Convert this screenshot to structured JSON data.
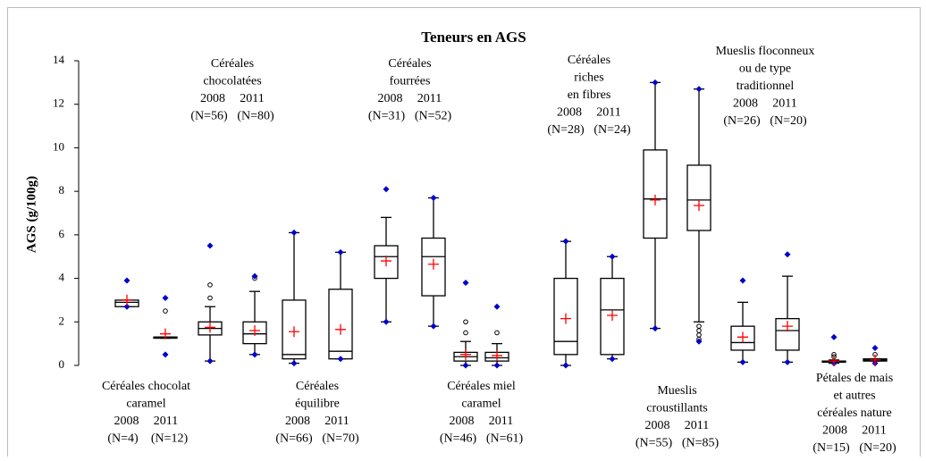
{
  "chart_data": {
    "type": "box",
    "title": "Teneurs en AGS",
    "y_label": "AGS (g/100g)",
    "ylim": [
      0,
      14
    ],
    "yticks": [
      0,
      2,
      4,
      6,
      8,
      10,
      12,
      14
    ],
    "box_color": "#000000",
    "mean_color": "#ff0000",
    "extreme_color": "#0000cc",
    "groups": [
      {
        "label_lines": [
          "Céréales chocolat",
          "caramel"
        ],
        "years": [
          "2008",
          "2011"
        ],
        "n": [
          "(N=4)",
          "(N=12)"
        ],
        "label_position": "below",
        "boxes": [
          {
            "low": 2.7,
            "q1": 2.7,
            "median": 2.9,
            "q3": 3.0,
            "high": 3.0,
            "mean": 3.0,
            "min": 2.7,
            "max": 3.9,
            "outliers": []
          },
          {
            "low": 1.25,
            "q1": 1.25,
            "median": 1.3,
            "q3": 1.3,
            "high": 1.3,
            "mean": 1.45,
            "min": 0.5,
            "max": 3.1,
            "outliers": [
              2.5
            ]
          }
        ]
      },
      {
        "label_lines": [
          "Céréales",
          "chocolatées"
        ],
        "years": [
          "2008",
          "2011"
        ],
        "n": [
          "(N=56)",
          "(N=80)"
        ],
        "label_position": "above",
        "boxes": [
          {
            "low": 0.2,
            "q1": 1.4,
            "median": 1.7,
            "q3": 2.0,
            "high": 2.7,
            "mean": 1.75,
            "min": 0.2,
            "max": 5.5,
            "outliers": [
              3.1,
              3.7
            ]
          },
          {
            "low": 0.5,
            "q1": 1.0,
            "median": 1.45,
            "q3": 2.0,
            "high": 3.4,
            "mean": 1.6,
            "min": 0.5,
            "max": 4.1,
            "outliers": [
              4.0
            ]
          }
        ]
      },
      {
        "label_lines": [
          "Céréales",
          "équilibre"
        ],
        "years": [
          "2008",
          "2011"
        ],
        "n": [
          "(N=66)",
          "(N=70)"
        ],
        "label_position": "below",
        "boxes": [
          {
            "low": 0.1,
            "q1": 0.3,
            "median": 0.5,
            "q3": 3.0,
            "high": 6.1,
            "mean": 1.55,
            "min": 0.1,
            "max": 6.1,
            "outliers": []
          },
          {
            "low": 0.3,
            "q1": 0.3,
            "median": 0.65,
            "q3": 3.5,
            "high": 5.2,
            "mean": 1.65,
            "min": 0.3,
            "max": 5.2,
            "outliers": []
          }
        ]
      },
      {
        "label_lines": [
          "Céréales",
          "fourrées"
        ],
        "years": [
          "2008",
          "2011"
        ],
        "n": [
          "(N=31)",
          "(N=52)"
        ],
        "label_position": "above",
        "boxes": [
          {
            "low": 2.0,
            "q1": 4.0,
            "median": 5.0,
            "q3": 5.5,
            "high": 6.8,
            "mean": 4.8,
            "min": 2.0,
            "max": 8.1,
            "outliers": []
          },
          {
            "low": 1.8,
            "q1": 3.2,
            "median": 5.0,
            "q3": 5.85,
            "high": 7.7,
            "mean": 4.65,
            "min": 1.8,
            "max": 7.7,
            "outliers": []
          }
        ]
      },
      {
        "label_lines": [
          "Céréales miel",
          "caramel"
        ],
        "years": [
          "2008",
          "2011"
        ],
        "n": [
          "(N=46)",
          "(N=61)"
        ],
        "label_position": "below",
        "boxes": [
          {
            "low": 0.0,
            "q1": 0.2,
            "median": 0.4,
            "q3": 0.6,
            "high": 1.1,
            "mean": 0.5,
            "min": 0.0,
            "max": 3.8,
            "outliers": [
              1.5,
              2.0
            ]
          },
          {
            "low": 0.0,
            "q1": 0.2,
            "median": 0.35,
            "q3": 0.6,
            "high": 1.0,
            "mean": 0.45,
            "min": 0.0,
            "max": 2.7,
            "outliers": [
              1.5
            ]
          }
        ]
      },
      {
        "label_lines": [
          "Céréales",
          "riches",
          "en fibres"
        ],
        "years": [
          "2008",
          "2011"
        ],
        "n": [
          "(N=28)",
          "(N=24)"
        ],
        "label_position": "above",
        "boxes": [
          {
            "low": 0.0,
            "q1": 0.5,
            "median": 1.1,
            "q3": 4.0,
            "high": 5.7,
            "mean": 2.15,
            "min": 0.0,
            "max": 5.7,
            "outliers": []
          },
          {
            "low": 0.3,
            "q1": 0.5,
            "median": 2.55,
            "q3": 4.0,
            "high": 5.0,
            "mean": 2.3,
            "min": 0.3,
            "max": 5.0,
            "outliers": []
          }
        ]
      },
      {
        "label_lines": [
          "Mueslis",
          "croustillants"
        ],
        "years": [
          "2008",
          "2011"
        ],
        "n": [
          "(N=55)",
          "(N=85)"
        ],
        "label_position": "below",
        "boxes": [
          {
            "low": 1.7,
            "q1": 5.85,
            "median": 7.65,
            "q3": 9.9,
            "high": 13.0,
            "mean": 7.6,
            "min": 1.7,
            "max": 13.0,
            "outliers": []
          },
          {
            "low": 2.0,
            "q1": 6.2,
            "median": 7.6,
            "q3": 9.2,
            "high": 12.7,
            "mean": 7.35,
            "min": 1.1,
            "max": 12.7,
            "outliers": [
              1.8,
              1.6,
              1.4,
              1.2
            ]
          }
        ]
      },
      {
        "label_lines": [
          "Mueslis floconneux",
          "ou de type",
          "traditionnel"
        ],
        "years": [
          "2008",
          "2011"
        ],
        "n": [
          "(N=26)",
          "(N=20)"
        ],
        "label_position": "above",
        "boxes": [
          {
            "low": 0.15,
            "q1": 0.7,
            "median": 1.05,
            "q3": 1.8,
            "high": 2.9,
            "mean": 1.3,
            "min": 0.15,
            "max": 3.9,
            "outliers": []
          },
          {
            "low": 0.15,
            "q1": 0.7,
            "median": 1.6,
            "q3": 2.15,
            "high": 4.1,
            "mean": 1.8,
            "min": 0.15,
            "max": 5.1,
            "outliers": []
          }
        ]
      },
      {
        "label_lines": [
          "Pétales de mais",
          "et autres",
          "céréales nature"
        ],
        "years": [
          "2008",
          "2011"
        ],
        "n": [
          "(N=15)",
          "(N=20)"
        ],
        "label_position": "below",
        "boxes": [
          {
            "low": 0.1,
            "q1": 0.15,
            "median": 0.2,
            "q3": 0.2,
            "high": 0.25,
            "mean": 0.2,
            "min": 0.1,
            "max": 1.3,
            "outliers": [
              0.4,
              0.5
            ]
          },
          {
            "low": 0.2,
            "q1": 0.2,
            "median": 0.25,
            "q3": 0.3,
            "high": 0.3,
            "mean": 0.25,
            "min": 0.1,
            "max": 0.8,
            "outliers": [
              0.5
            ]
          }
        ]
      }
    ]
  }
}
